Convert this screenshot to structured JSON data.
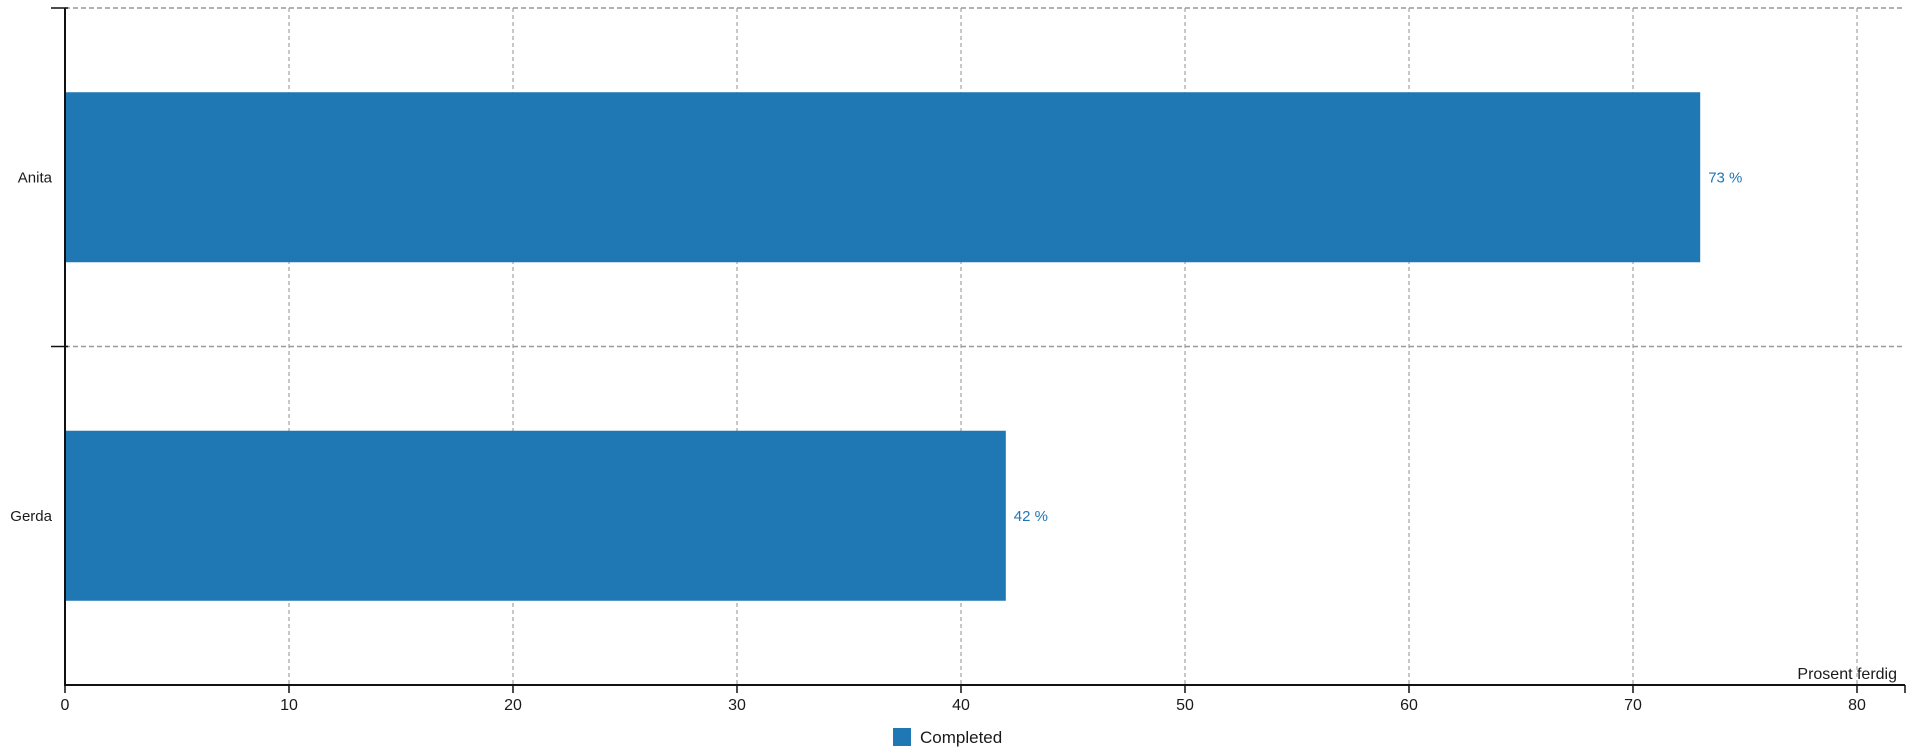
{
  "chart_data": {
    "type": "bar",
    "orientation": "horizontal",
    "title": "",
    "categories": [
      "Anita",
      "Gerda"
    ],
    "series": [
      {
        "name": "Completed",
        "values": [
          73,
          42
        ],
        "color": "#1f77b4"
      }
    ],
    "value_labels": [
      "73 %",
      "42 %"
    ],
    "xlabel": "Prosent ferdig",
    "ylabel": "",
    "xlim": [
      0,
      80
    ],
    "xticks": [
      0,
      10,
      20,
      30,
      40,
      50,
      60,
      70,
      80
    ],
    "xtick_labels": [
      "0",
      "10",
      "20",
      "30",
      "40",
      "50",
      "60",
      "70",
      "80"
    ],
    "grid": true,
    "grid_style": "dashed",
    "legend": {
      "position": "bottom-center",
      "entries": [
        {
          "label": "Completed",
          "color": "#1f77b4"
        }
      ]
    }
  },
  "colors": {
    "bar": "#1f77b4",
    "value_label": "#1f77b4",
    "axis": "#111111",
    "text": "#1a1a1a",
    "grid_vertical": "#b0b0b0",
    "grid_horizontal": "#999999",
    "background": "#ffffff"
  }
}
